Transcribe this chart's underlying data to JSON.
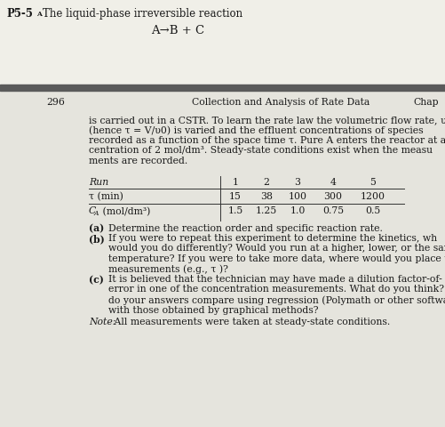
{
  "title_label": "P5-5",
  "title_sub": "A",
  "title_text": "The liquid-phase irreversible reaction",
  "reaction": "A→B + C",
  "page_number": "296",
  "header_center": "Collection and Analysis of Rate Data",
  "header_right": "Chap",
  "separator_color": "#666666",
  "body_lines": [
    "is carried out in a CSTR. To learn the rate law the volumetric flow rate, υ",
    "(hence τ = V/υ0) is varied and the effluent concentrations of species",
    "recorded as a function of the space time τ. Pure A enters the reactor at a co",
    "centration of 2 mol/dm³. Steady-state conditions exist when the measu",
    "ments are recorded."
  ],
  "table_run_label": "Run",
  "table_run_nums": [
    "1",
    "2",
    "3",
    "4",
    "5"
  ],
  "table_tau_label": "τ (min)",
  "table_tau_vals": [
    "15",
    "38",
    "100",
    "300",
    "1200"
  ],
  "table_ca_label_C": "C",
  "table_ca_label_sub": "A",
  "table_ca_label_rest": " (mol/dm³)",
  "table_ca_vals": [
    "1.5",
    "1.25",
    "1.0",
    "0.75",
    "0.5"
  ],
  "part_a_label": "(a)",
  "part_a_text": "Determine the reaction order and specific reaction rate.",
  "part_b_label": "(b)",
  "part_b_lines": [
    "If you were to repeat this experiment to determine the kinetics, wh",
    "would you do differently? Would you run at a higher, lower, or the sar",
    "temperature? If you were to take more data, where would you place t",
    "measurements (e.g., τ )?"
  ],
  "part_c_label": "(c)",
  "part_c_lines": [
    "It is believed that the technician may have made a dilution factor-of-",
    "error in one of the concentration measurements. What do you think? Hc",
    "do your answers compare using regression (Polymath or other softwar",
    "with those obtained by graphical methods?"
  ],
  "note_italic": "Note:",
  "note_rest": " All measurements were taken at steady-state conditions.",
  "bg_color": "#e8e8e2",
  "page_bg": "#e8e8e2",
  "text_color": "#1a1a1a",
  "fs_title": 8.5,
  "fs_body": 7.8,
  "fs_reaction": 9.5,
  "fs_header": 7.8
}
